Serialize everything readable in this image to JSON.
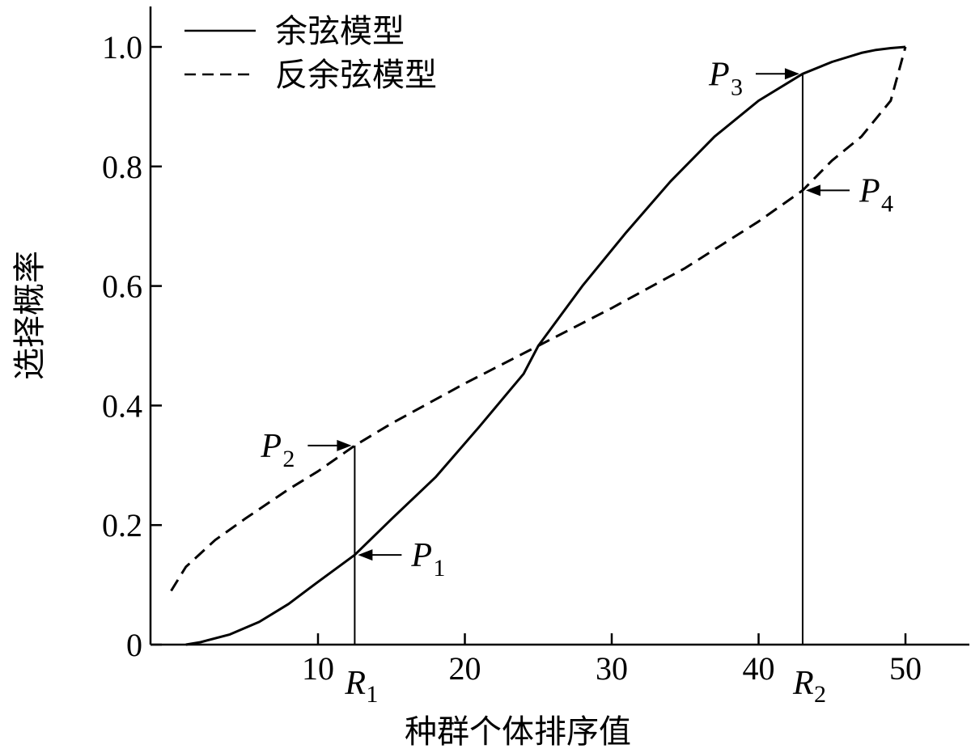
{
  "chart_data": {
    "type": "line",
    "xlabel": "种群个体排序值",
    "ylabel": "选择概率",
    "xlim": [
      0,
      52
    ],
    "ylim": [
      0,
      1.0
    ],
    "x_ticks": [
      {
        "value": 10,
        "label": "10"
      },
      {
        "value": 20,
        "label": "20"
      },
      {
        "value": 30,
        "label": "30"
      },
      {
        "value": 40,
        "label": "40"
      },
      {
        "value": 50,
        "label": "50"
      }
    ],
    "y_ticks": [
      {
        "value": 0,
        "label": "0"
      },
      {
        "value": 0.2,
        "label": "0.2"
      },
      {
        "value": 0.4,
        "label": "0.4"
      },
      {
        "value": 0.6,
        "label": "0.6"
      },
      {
        "value": 0.8,
        "label": "0.8"
      },
      {
        "value": 1.0,
        "label": "1.0"
      }
    ],
    "legend": {
      "position": "top-left"
    },
    "grid": false,
    "series": [
      {
        "name": "余弦模型",
        "style": "solid",
        "x": [
          1,
          2,
          4,
          6,
          8,
          10,
          12.5,
          15,
          18,
          21,
          24,
          25,
          28,
          31,
          34,
          37,
          40,
          43,
          45,
          47,
          48,
          49,
          50
        ],
        "y": [
          0.0,
          0.004,
          0.017,
          0.038,
          0.068,
          0.105,
          0.15,
          0.21,
          0.28,
          0.365,
          0.453,
          0.5,
          0.6,
          0.69,
          0.775,
          0.85,
          0.91,
          0.955,
          0.975,
          0.99,
          0.995,
          0.998,
          1.0
        ]
      },
      {
        "name": "反余弦模型",
        "style": "dashed",
        "x": [
          0,
          1,
          3,
          5,
          8,
          10,
          12.5,
          15,
          20,
          25,
          30,
          35,
          40,
          43,
          45,
          47,
          49,
          50
        ],
        "y": [
          0.09,
          0.13,
          0.175,
          0.21,
          0.26,
          0.29,
          0.333,
          0.37,
          0.437,
          0.5,
          0.563,
          0.63,
          0.708,
          0.76,
          0.81,
          0.85,
          0.91,
          1.0
        ]
      }
    ],
    "annotations": [
      {
        "id": "p1",
        "base": "P",
        "sub": "1",
        "x": 12.5,
        "y": 0.15
      },
      {
        "id": "p2",
        "base": "P",
        "sub": "2",
        "x": 12.5,
        "y": 0.333
      },
      {
        "id": "p3",
        "base": "P",
        "sub": "3",
        "x": 43,
        "y": 0.955
      },
      {
        "id": "p4",
        "base": "P",
        "sub": "4",
        "x": 43,
        "y": 0.76
      }
    ],
    "markers": [
      {
        "id": "r1",
        "base": "R",
        "sub": "1",
        "x": 12.5
      },
      {
        "id": "r2",
        "base": "R",
        "sub": "2",
        "x": 43
      }
    ]
  }
}
